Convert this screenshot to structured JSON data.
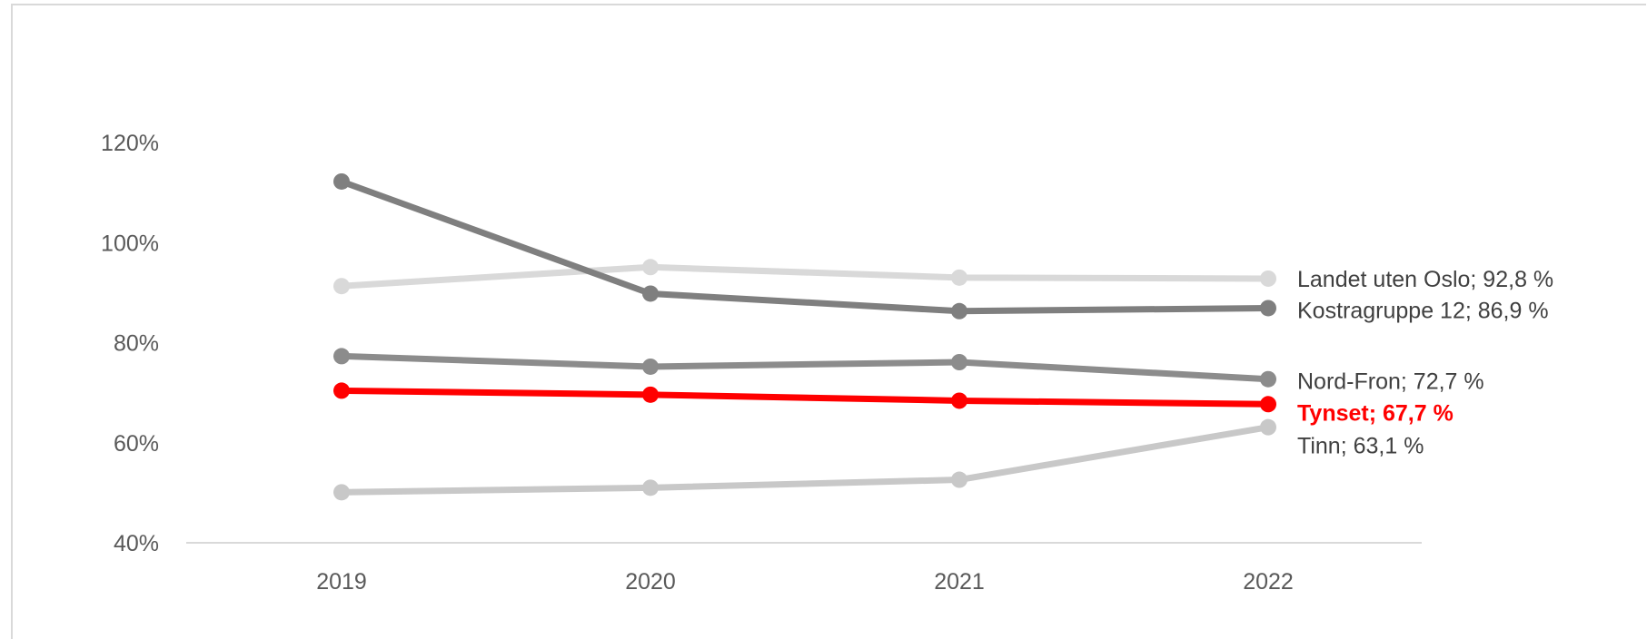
{
  "chart_data": {
    "type": "line",
    "title": "",
    "xlabel": "",
    "ylabel": "",
    "categories": [
      "2019",
      "2020",
      "2021",
      "2022"
    ],
    "ylim": [
      40,
      120
    ],
    "yticks": [
      40,
      60,
      80,
      100,
      120
    ],
    "y_tick_labels": [
      "40%",
      "60%",
      "80%",
      "100%",
      "120%"
    ],
    "grid": false,
    "legend": "none",
    "series": [
      {
        "name": "Landet uten Oslo",
        "values": [
          91.3,
          95.1,
          93.0,
          92.8
        ],
        "color": "#d9d9d9",
        "end_label": "Landet uten Oslo; 92,8 %",
        "label_bold": false,
        "label_color": "#404040"
      },
      {
        "name": "Kostragruppe 12",
        "values": [
          112.2,
          89.8,
          86.3,
          86.9
        ],
        "color": "#7f7f7f",
        "end_label": "Kostragruppe 12; 86,9 %",
        "label_bold": false,
        "label_color": "#404040"
      },
      {
        "name": "Nord-Fron",
        "values": [
          77.3,
          75.2,
          76.1,
          72.7
        ],
        "color": "#8c8c8c",
        "end_label": "Nord-Fron; 72,7 %",
        "label_bold": false,
        "label_color": "#404040"
      },
      {
        "name": "Tynset",
        "values": [
          70.4,
          69.6,
          68.4,
          67.7
        ],
        "color": "#ff0000",
        "end_label": "Tynset; 67,7 %",
        "label_bold": true,
        "label_color": "#ff0000"
      },
      {
        "name": "Tinn",
        "values": [
          50.1,
          51.0,
          52.6,
          63.1
        ],
        "color": "#c8c8c8",
        "end_label": "Tinn; 63,1 %",
        "label_bold": false,
        "label_color": "#404040"
      }
    ]
  }
}
